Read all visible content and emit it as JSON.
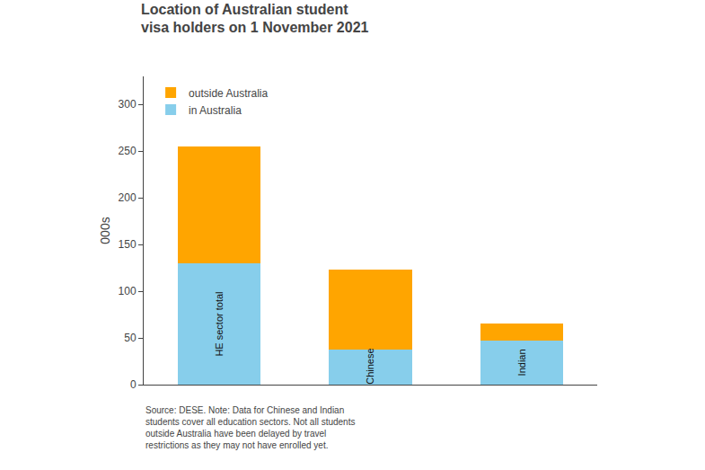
{
  "chart_data": {
    "type": "bar",
    "title": "Location of Australian student\nvisa holders on 1 November 2021",
    "categories": [
      "HE sector total",
      "Chinese",
      "Indian"
    ],
    "series": [
      {
        "name": "in Australia",
        "color": "#87CEEB",
        "values": [
          130,
          38,
          47
        ]
      },
      {
        "name": "outside Australia",
        "color": "#FFA500",
        "values": [
          125,
          85,
          18
        ]
      }
    ],
    "stacked": true,
    "ylabel": "000s",
    "ylim": [
      0,
      330
    ],
    "yticks": [
      0,
      50,
      100,
      150,
      200,
      250,
      300
    ],
    "grid": false,
    "legend": "upper left",
    "tick_labels": "y",
    "annotations": [
      "Source: DESE. Note: Data for Chinese and Indian\nstudents cover all education sectors. Not all students\noutside Australia have been delayed by travel\nrestrictions as they may not have enrolled yet."
    ]
  }
}
